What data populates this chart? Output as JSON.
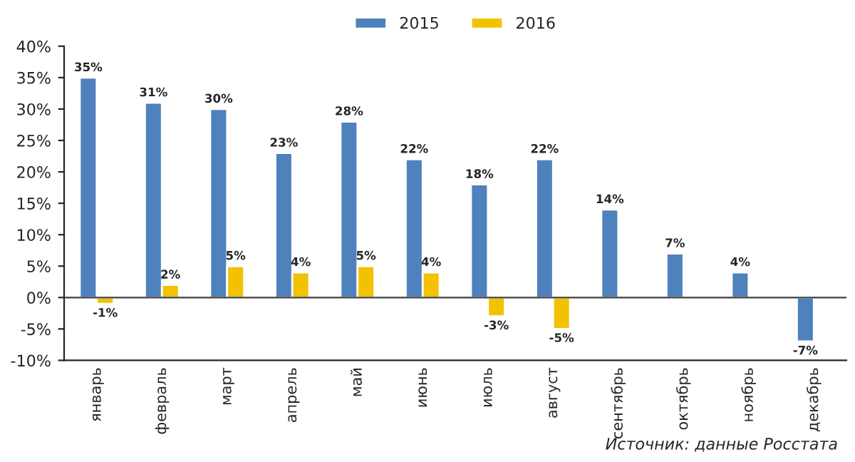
{
  "chart_data": {
    "type": "bar",
    "categories": [
      "январь",
      "февраль",
      "март",
      "апрель",
      "май",
      "июнь",
      "июль",
      "август",
      "сентябрь",
      "октябрь",
      "ноябрь",
      "декабрь"
    ],
    "series": [
      {
        "name": "2015",
        "color": "#4f81bd",
        "values": [
          35,
          31,
          30,
          23,
          28,
          22,
          18,
          22,
          14,
          7,
          4,
          -7
        ],
        "value_labels": [
          "35%",
          "31%",
          "30%",
          "23%",
          "28%",
          "22%",
          "18%",
          "22%",
          "14%",
          "7%",
          "4%",
          "-7%"
        ]
      },
      {
        "name": "2016",
        "color": "#f2c200",
        "values": [
          -1,
          2,
          5,
          4,
          5,
          4,
          -3,
          -5,
          null,
          null,
          null,
          null
        ],
        "value_labels": [
          "-1%",
          "2%",
          "5%",
          "4%",
          "5%",
          "4%",
          "-3%",
          "-5%",
          null,
          null,
          null,
          null
        ]
      }
    ],
    "ylim": [
      -10,
      40
    ],
    "yticks": [
      {
        "value": -10,
        "label": "-10%"
      },
      {
        "value": -5,
        "label": "-5%"
      },
      {
        "value": 0,
        "label": "0%"
      },
      {
        "value": 5,
        "label": "5%"
      },
      {
        "value": 10,
        "label": "10%"
      },
      {
        "value": 15,
        "label": "15%"
      },
      {
        "value": 20,
        "label": "20%"
      },
      {
        "value": 25,
        "label": "25%"
      },
      {
        "value": 30,
        "label": "30%"
      },
      {
        "value": 35,
        "label": "35%"
      },
      {
        "value": 40,
        "label": "40%"
      }
    ],
    "legend": "top",
    "grid": false,
    "ref_lines": [
      {
        "axis": "y",
        "value": 0,
        "label": null,
        "color": "#404040"
      }
    ],
    "annotations": [
      "Источник: данные Росстата"
    ]
  }
}
